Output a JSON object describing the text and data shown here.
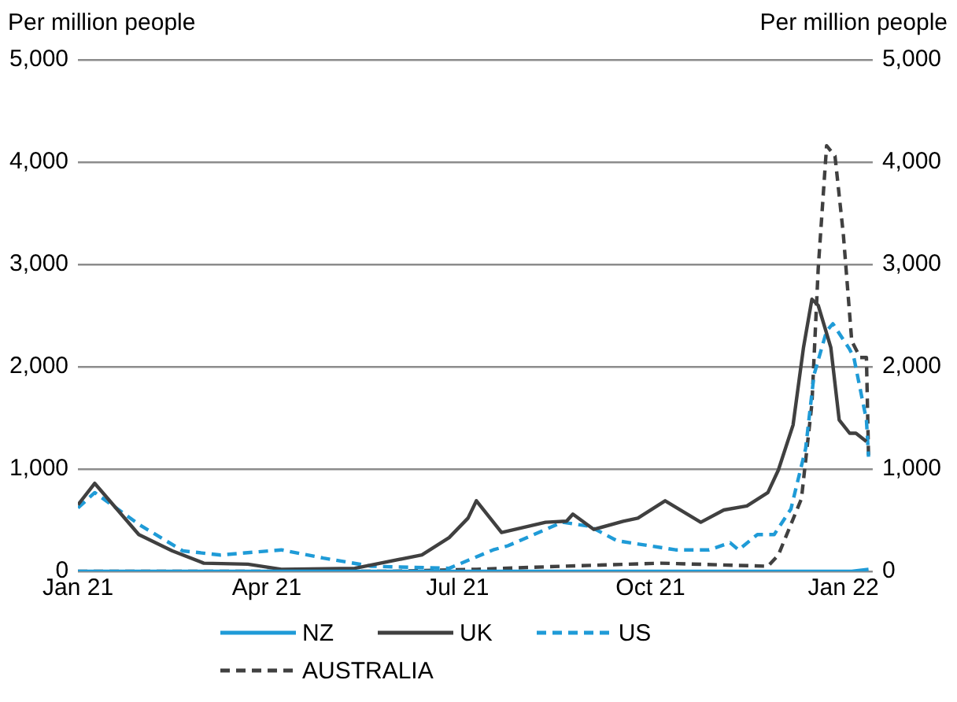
{
  "chart_data": {
    "type": "line",
    "ylabel": "Per million people",
    "y2label": "Per million people",
    "xlim": [
      "2021-01-01",
      "2022-01-15"
    ],
    "xticks": [
      {
        "value": "2021-01-01",
        "label": "Jan 21"
      },
      {
        "value": "2021-04-01",
        "label": "Apr 21"
      },
      {
        "value": "2021-07-01",
        "label": "Jul 21"
      },
      {
        "value": "2021-10-01",
        "label": "Oct 21"
      },
      {
        "value": "2022-01-01",
        "label": "Jan 22"
      }
    ],
    "ylim": [
      0,
      5000
    ],
    "yticks": [
      0,
      {
        "value": 1000,
        "label": "1,000"
      },
      {
        "value": 2000,
        "label": "2,000"
      },
      {
        "value": 3000,
        "label": "3,000"
      },
      {
        "value": 4000,
        "label": "4,000"
      },
      {
        "value": 5000,
        "label": "5,000"
      }
    ],
    "y2lim": [
      0,
      5000
    ],
    "y2ticks": [
      0,
      {
        "value": 1000,
        "label": "1,000"
      },
      {
        "value": 2000,
        "label": "2,000"
      },
      {
        "value": 3000,
        "label": "3,000"
      },
      {
        "value": 4000,
        "label": "4,000"
      },
      {
        "value": 5000,
        "label": "5,000"
      }
    ],
    "grid": "y",
    "legend": "bottom",
    "marker": "none",
    "series": [
      {
        "name": "NZ",
        "color": "#1f9bd7",
        "line_style": "solid",
        "x": [
          "2021-01-01",
          "2021-06-01",
          "2021-09-01",
          "2021-12-01",
          "2022-01-05",
          "2022-01-13"
        ],
        "values": [
          0,
          0,
          0,
          0,
          0,
          20
        ]
      },
      {
        "name": "UK",
        "color": "#404040",
        "line_style": "solid",
        "x": [
          "2021-01-01",
          "2021-01-09",
          "2021-01-30",
          "2021-02-15",
          "2021-03-02",
          "2021-03-23",
          "2021-04-08",
          "2021-05-13",
          "2021-06-14",
          "2021-06-27",
          "2021-07-06",
          "2021-07-10",
          "2021-07-22",
          "2021-08-12",
          "2021-08-22",
          "2021-08-25",
          "2021-09-04",
          "2021-09-18",
          "2021-09-25",
          "2021-10-08",
          "2021-10-25",
          "2021-11-05",
          "2021-11-16",
          "2021-11-26",
          "2021-12-01",
          "2021-12-08",
          "2021-12-13",
          "2021-12-17",
          "2021-12-20",
          "2021-12-26",
          "2021-12-30",
          "2022-01-04",
          "2022-01-07",
          "2022-01-12"
        ],
        "values": [
          650,
          860,
          360,
          200,
          80,
          70,
          20,
          30,
          160,
          330,
          520,
          690,
          380,
          480,
          490,
          560,
          410,
          490,
          520,
          690,
          480,
          600,
          640,
          770,
          990,
          1430,
          2190,
          2660,
          2600,
          2190,
          1480,
          1350,
          1350,
          1270
        ]
      },
      {
        "name": "US",
        "color": "#1f9bd7",
        "line_style": "dashed",
        "x": [
          "2021-01-01",
          "2021-01-09",
          "2021-01-30",
          "2021-02-20",
          "2021-03-10",
          "2021-04-08",
          "2021-04-28",
          "2021-05-21",
          "2021-06-27",
          "2021-07-18",
          "2021-07-25",
          "2021-08-20",
          "2021-09-02",
          "2021-09-15",
          "2021-10-13",
          "2021-10-29",
          "2021-11-08",
          "2021-11-12",
          "2021-11-21",
          "2021-11-29",
          "2021-12-07",
          "2021-12-14",
          "2021-12-18",
          "2021-12-24",
          "2021-12-27",
          "2022-01-04",
          "2022-01-06",
          "2022-01-12",
          "2022-01-13"
        ],
        "values": [
          620,
          770,
          460,
          200,
          160,
          210,
          130,
          50,
          30,
          210,
          250,
          480,
          440,
          300,
          210,
          210,
          280,
          210,
          360,
          360,
          610,
          1200,
          1920,
          2350,
          2420,
          2170,
          2090,
          1480,
          1120
        ]
      },
      {
        "name": "AUSTRALIA",
        "color": "#404040",
        "line_style": "dashed",
        "x": [
          "2021-01-01",
          "2021-05-31",
          "2021-07-10",
          "2021-08-20",
          "2021-10-06",
          "2021-11-26",
          "2021-12-01",
          "2021-12-12",
          "2021-12-17",
          "2021-12-20",
          "2021-12-24",
          "2021-12-28",
          "2022-01-01",
          "2022-01-05",
          "2022-01-09",
          "2022-01-12",
          "2022-01-13"
        ],
        "values": [
          0,
          0,
          20,
          50,
          80,
          50,
          160,
          710,
          1640,
          2960,
          4160,
          4060,
          3290,
          2250,
          2090,
          2090,
          1120
        ]
      }
    ]
  }
}
